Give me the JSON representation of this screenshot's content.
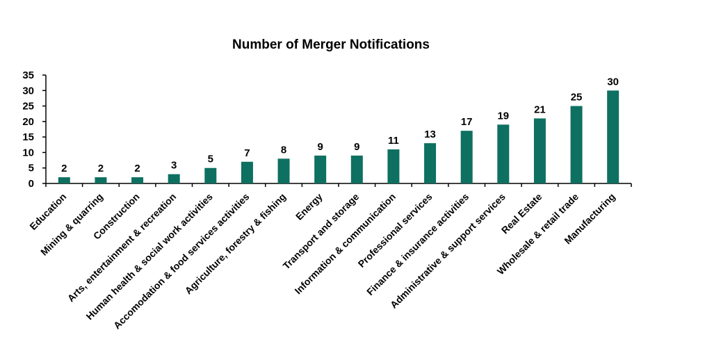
{
  "chart_data": {
    "type": "bar",
    "title": "Number of Merger Notifications",
    "xlabel": "",
    "ylabel": "",
    "categories": [
      "Education",
      "Mining & quarring",
      "Construction",
      "Arts, entertainment & recreation",
      "Human health & social work activities",
      "Accomodation & food services activities",
      "Agriculture, forestry & fishing",
      "Energy",
      "Transport and storage",
      "Information & communication",
      "Professional services",
      "Finance & insurance activities",
      "Administrative  & support services",
      "Real Estate",
      "Wholesale & retail trade",
      "Manufacturing"
    ],
    "values": [
      2,
      2,
      2,
      3,
      5,
      7,
      8,
      9,
      9,
      11,
      13,
      17,
      19,
      21,
      25,
      30
    ],
    "ylim": [
      0,
      35
    ],
    "yticks": [
      0,
      5,
      10,
      15,
      20,
      25,
      30,
      35
    ],
    "bar_color": "#0e7060",
    "grid": false,
    "legend": "none"
  }
}
